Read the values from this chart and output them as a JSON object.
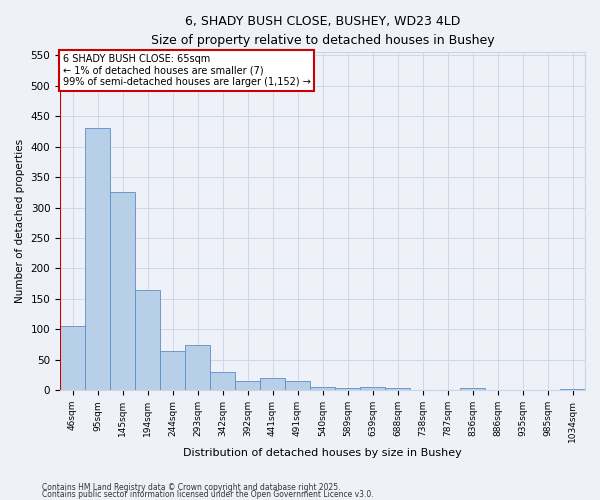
{
  "title1": "6, SHADY BUSH CLOSE, BUSHEY, WD23 4LD",
  "title2": "Size of property relative to detached houses in Bushey",
  "xlabel": "Distribution of detached houses by size in Bushey",
  "ylabel": "Number of detached properties",
  "categories": [
    "46sqm",
    "95sqm",
    "145sqm",
    "194sqm",
    "244sqm",
    "293sqm",
    "342sqm",
    "392sqm",
    "441sqm",
    "491sqm",
    "540sqm",
    "589sqm",
    "639sqm",
    "688sqm",
    "738sqm",
    "787sqm",
    "836sqm",
    "886sqm",
    "935sqm",
    "985sqm",
    "1034sqm"
  ],
  "values": [
    105,
    430,
    325,
    165,
    65,
    75,
    30,
    15,
    20,
    15,
    5,
    3,
    5,
    3,
    0,
    0,
    3,
    0,
    0,
    0,
    2
  ],
  "bar_color": "#b8cfe8",
  "bar_edge_color": "#5b8ec4",
  "highlight_color": "#cc0000",
  "annotation_title": "6 SHADY BUSH CLOSE: 65sqm",
  "annotation_line1": "← 1% of detached houses are smaller (7)",
  "annotation_line2": "99% of semi-detached houses are larger (1,152) →",
  "annotation_box_color": "#cc0000",
  "ylim": [
    0,
    555
  ],
  "yticks": [
    0,
    50,
    100,
    150,
    200,
    250,
    300,
    350,
    400,
    450,
    500,
    550
  ],
  "footer1": "Contains HM Land Registry data © Crown copyright and database right 2025.",
  "footer2": "Contains public sector information licensed under the Open Government Licence v3.0.",
  "bg_color": "#eef2f8",
  "plot_bg_color": "#eef2f8",
  "grid_color": "#c8d4e8"
}
